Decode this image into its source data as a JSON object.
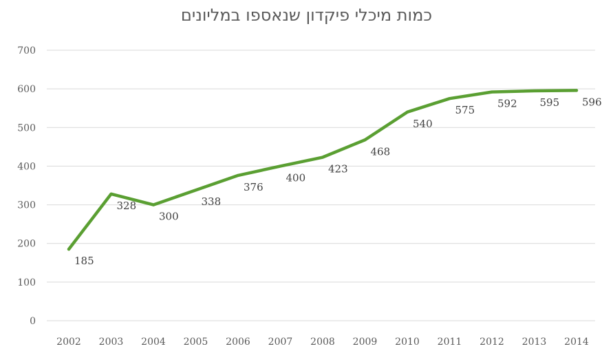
{
  "chart_data": {
    "type": "line",
    "title": "כמות מיכלי פיקדון שנאספו במליונים",
    "xlabel": "",
    "ylabel": "",
    "ylim": [
      0,
      700
    ],
    "y_ticks": [
      "0",
      "100",
      "200",
      "300",
      "400",
      "500",
      "600",
      "700"
    ],
    "grid": true,
    "legend": "none",
    "categories": [
      "2002",
      "2003",
      "2004",
      "2005",
      "2006",
      "2007",
      "2008",
      "2009",
      "2010",
      "2011",
      "2012",
      "2013",
      "2014"
    ],
    "series": [
      {
        "values": [
          185,
          328,
          300,
          338,
          376,
          400,
          423,
          468,
          540,
          575,
          592,
          595,
          596
        ],
        "labels": [
          "185",
          "328",
          "300",
          "338",
          "376",
          "400",
          "423",
          "468",
          "540",
          "575",
          "592",
          "595",
          "596"
        ],
        "color": "#5a9f32"
      }
    ],
    "colors": {
      "gridline": "#d9d9d9",
      "axis_text": "#595959"
    }
  }
}
